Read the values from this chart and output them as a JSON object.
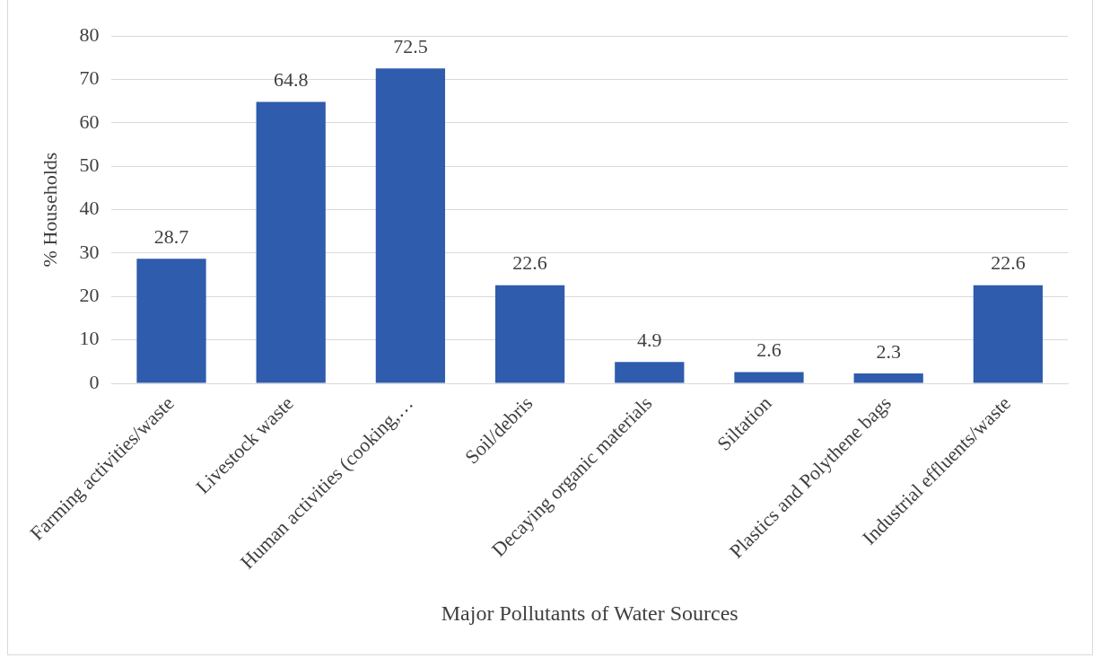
{
  "chart_data": {
    "type": "bar",
    "xlabel": "Major Pollutants of Water Sources",
    "ylabel": "% Households",
    "categories": [
      "Farming activities/waste",
      "Livestock waste",
      "Human activities (cooking,…",
      "Soil/debris",
      "Decaying organic materials",
      "Siltation",
      "Plastics and Polythene bags",
      "Industrial effluents/waste"
    ],
    "values": [
      28.7,
      64.8,
      72.5,
      22.6,
      4.9,
      2.6,
      2.3,
      22.6
    ],
    "color": "#2f5cac",
    "ylim": [
      0,
      80
    ],
    "yticks": [
      0,
      10,
      20,
      30,
      40,
      50,
      60,
      70,
      80
    ],
    "grid": "y",
    "data_labels": true,
    "legend": false
  }
}
